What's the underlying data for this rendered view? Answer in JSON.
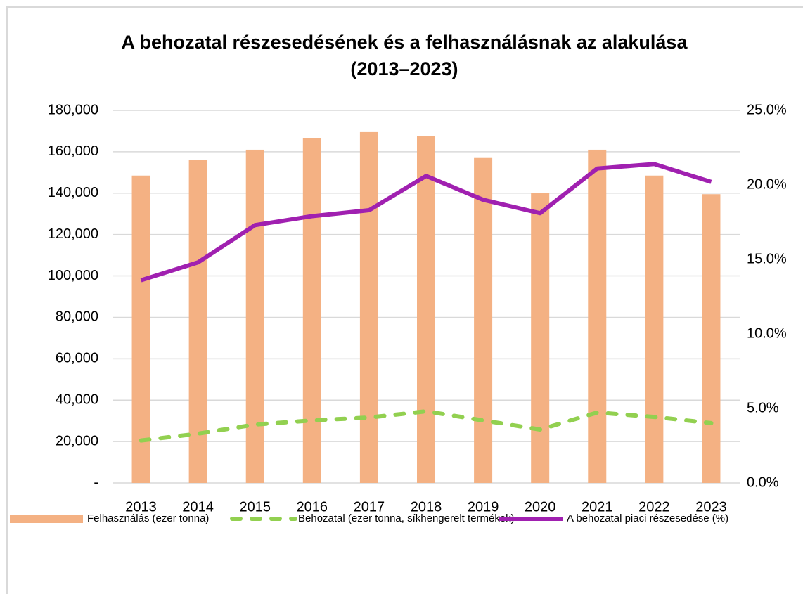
{
  "chart_data": {
    "type": "bar_line",
    "title": [
      "A behozatal részesedésének és a felhasználásnak az alakulása",
      "(2013–2023)"
    ],
    "categories": [
      "2013",
      "2014",
      "2015",
      "2016",
      "2017",
      "2018",
      "2019",
      "2020",
      "2021",
      "2022",
      "2023"
    ],
    "series": [
      {
        "name": "Felhasználás (ezer tonna)",
        "type": "bar",
        "color": "#f4b183",
        "values": [
          148500,
          156000,
          161000,
          166500,
          169500,
          167500,
          157000,
          140000,
          161000,
          148500,
          139500
        ]
      },
      {
        "name": "Behozatal (ezer tonna, síkhengerelt termékek)",
        "type": "line",
        "dashed": true,
        "color": "#92d050",
        "values": [
          20500,
          23800,
          28200,
          30200,
          31600,
          34600,
          30200,
          25800,
          34000,
          31900,
          28900
        ]
      },
      {
        "name": "A behozatal piaci részesedése (%)",
        "type": "line",
        "axis": "y2",
        "color": "#a020b0",
        "values": [
          13.6,
          14.8,
          17.3,
          17.9,
          18.3,
          20.6,
          19.0,
          18.1,
          21.1,
          21.4,
          20.2
        ]
      }
    ],
    "ylim": [
      0,
      180000
    ],
    "yticks": [
      {
        "value": 0,
        "label": "-"
      },
      {
        "value": 20000,
        "label": "20,000"
      },
      {
        "value": 40000,
        "label": "40,000"
      },
      {
        "value": 60000,
        "label": "60,000"
      },
      {
        "value": 80000,
        "label": "80,000"
      },
      {
        "value": 100000,
        "label": "100,000"
      },
      {
        "value": 120000,
        "label": "120,000"
      },
      {
        "value": 140000,
        "label": "140,000"
      },
      {
        "value": 160000,
        "label": "160,000"
      },
      {
        "value": 180000,
        "label": "180,000"
      }
    ],
    "y2lim": [
      0,
      25
    ],
    "y2ticks": [
      {
        "value": 0,
        "label": "0.0%"
      },
      {
        "value": 5,
        "label": "5.0%"
      },
      {
        "value": 10,
        "label": "10.0%"
      },
      {
        "value": 15,
        "label": "15.0%"
      },
      {
        "value": 20,
        "label": "20.0%"
      },
      {
        "value": 25,
        "label": "25.0%"
      }
    ],
    "grid": true,
    "legend": "bottom"
  }
}
